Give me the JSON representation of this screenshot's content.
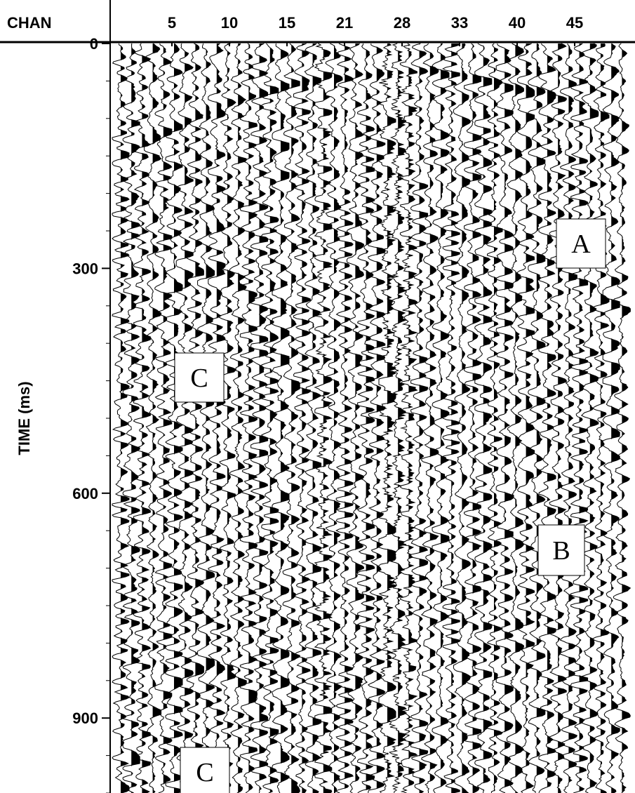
{
  "chart_data": {
    "type": "seismic",
    "x_axis_label": "CHAN",
    "y_axis_label": "TIME (ms)",
    "channel_labels": [
      5,
      10,
      15,
      21,
      28,
      33,
      40,
      45
    ],
    "ylim": [
      0,
      1000
    ],
    "yticks": [
      0,
      300,
      600,
      900
    ],
    "annotations": [
      "A",
      "B",
      "C",
      "C"
    ]
  }
}
